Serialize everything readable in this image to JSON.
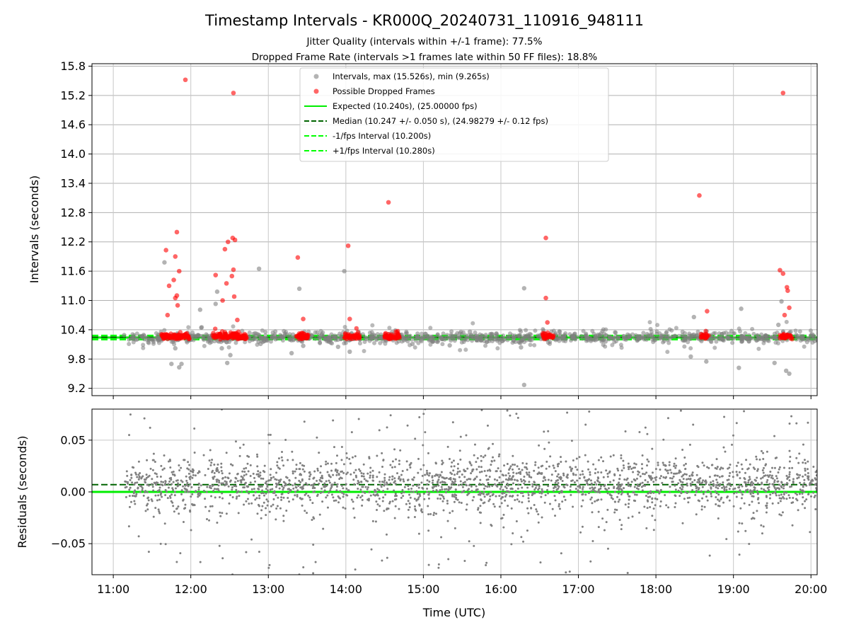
{
  "chart_data": [
    {
      "type": "scatter",
      "title": "Timestamp Intervals - KR000Q_20240731_110916_948111",
      "subtitle": [
        "Jitter Quality (intervals within +/-1 frame): 77.5%",
        "Dropped Frame Rate (intervals >1 frames late within 50 FF files): 18.8%"
      ],
      "ylabel": "Intervals (seconds)",
      "ylim": [
        9.05,
        15.85
      ],
      "yticks": [
        9.2,
        9.8,
        10.4,
        11.0,
        11.6,
        12.2,
        12.8,
        13.4,
        14.0,
        14.6,
        15.2,
        15.8
      ],
      "ytick_labels": [
        "9.2",
        "9.8",
        "10.4",
        "11.0",
        "11.6",
        "12.2",
        "12.8",
        "13.4",
        "14.0",
        "14.6",
        "15.2",
        "15.8"
      ],
      "grid": true,
      "legend_position": "top-center",
      "legend": [
        {
          "label": "Intervals, max (15.526s), min (9.265s)",
          "kind": "dot",
          "color": "#808080"
        },
        {
          "label": "Possible Dropped Frames",
          "kind": "dot",
          "color": "#ff0000"
        },
        {
          "label": "Expected (10.240s), (25.00000 fps)",
          "kind": "line",
          "color": "#00ee00",
          "dash": "solid"
        },
        {
          "label": "Median (10.247 +/- 0.050 s), (24.98279 +/- 0.12 fps)",
          "kind": "line",
          "color": "#006400",
          "dash": "dashed"
        },
        {
          "label": "-1/fps Interval (10.200s)",
          "kind": "line",
          "color": "#00ff00",
          "dash": "dashed"
        },
        {
          "label": "+1/fps Interval (10.280s)",
          "kind": "line",
          "color": "#00ff00",
          "dash": "dashed"
        }
      ],
      "reference_lines": {
        "expected": 10.24,
        "median": 10.247,
        "minus_1fps": 10.2,
        "plus_1fps": 10.28
      },
      "series": [
        {
          "name": "Intervals, max (15.526s), min (9.265s)",
          "color": "#808080",
          "dense_bands": {
            "note_free": true,
            "x_hours": [
              11.2,
              20.2
            ],
            "y_center": 10.24,
            "y_spread": 0.09
          },
          "points": [
            [
              11.66,
              11.78
            ],
            [
              11.8,
              10.02
            ],
            [
              11.75,
              9.7
            ],
            [
              11.85,
              9.63
            ],
            [
              11.88,
              9.7
            ],
            [
              12.32,
              10.93
            ],
            [
              12.34,
              11.18
            ],
            [
              12.4,
              10.02
            ],
            [
              12.51,
              9.88
            ],
            [
              12.47,
              9.72
            ],
            [
              12.12,
              10.81
            ],
            [
              12.14,
              10.45
            ],
            [
              12.88,
              11.65
            ],
            [
              12.9,
              10.11
            ],
            [
              13.4,
              11.24
            ],
            [
              13.3,
              9.92
            ],
            [
              13.45,
              10.07
            ],
            [
              13.98,
              11.6
            ],
            [
              13.9,
              10.05
            ],
            [
              14.05,
              9.95
            ],
            [
              16.3,
              11.25
            ],
            [
              16.3,
              9.27
            ],
            [
              16.26,
              10.04
            ],
            [
              18.49,
              10.66
            ],
            [
              18.45,
              9.85
            ],
            [
              18.65,
              9.75
            ],
            [
              19.1,
              10.83
            ],
            [
              19.07,
              9.62
            ],
            [
              19.53,
              9.72
            ],
            [
              19.62,
              10.98
            ],
            [
              19.72,
              9.5
            ],
            [
              19.68,
              9.56
            ],
            [
              19.58,
              10.5
            ],
            [
              15.6,
              10.36
            ],
            [
              17.9,
              10.28
            ],
            [
              11.14,
              10.29
            ],
            [
              20.05,
              10.17
            ],
            [
              14.86,
              10.11
            ],
            [
              15.34,
              10.08
            ],
            [
              17.35,
              10.16
            ]
          ]
        },
        {
          "name": "Possible Dropped Frames",
          "color": "#ff0000",
          "clusters": [
            {
              "x_from": 11.62,
              "x_to": 11.98,
              "y_max": 12.0
            },
            {
              "x_from": 12.28,
              "x_to": 12.72,
              "y_max": 11.9
            },
            {
              "x_from": 13.36,
              "x_to": 13.52,
              "y_max": 10.45
            },
            {
              "x_from": 13.98,
              "x_to": 14.18,
              "y_max": 10.55
            },
            {
              "x_from": 14.5,
              "x_to": 14.7,
              "y_max": 10.4
            },
            {
              "x_from": 16.54,
              "x_to": 16.68,
              "y_max": 10.4
            },
            {
              "x_from": 18.58,
              "x_to": 18.68,
              "y_max": 10.5
            },
            {
              "x_from": 19.6,
              "x_to": 19.76,
              "y_max": 10.7
            }
          ],
          "points": [
            [
              11.93,
              15.52
            ],
            [
              12.55,
              15.25
            ],
            [
              11.82,
              12.4
            ],
            [
              11.68,
              12.03
            ],
            [
              11.8,
              11.9
            ],
            [
              11.85,
              11.6
            ],
            [
              11.72,
              11.3
            ],
            [
              11.78,
              11.42
            ],
            [
              11.82,
              11.1
            ],
            [
              11.8,
              11.05
            ],
            [
              12.48,
              12.2
            ],
            [
              12.44,
              12.05
            ],
            [
              12.54,
              12.28
            ],
            [
              12.57,
              12.24
            ],
            [
              12.32,
              11.52
            ],
            [
              12.55,
              11.63
            ],
            [
              12.53,
              11.5
            ],
            [
              12.46,
              11.35
            ],
            [
              12.41,
              11.0
            ],
            [
              12.56,
              11.08
            ],
            [
              13.38,
              11.88
            ],
            [
              14.03,
              12.12
            ],
            [
              14.55,
              13.01
            ],
            [
              16.58,
              12.28
            ],
            [
              16.58,
              11.05
            ],
            [
              16.6,
              10.55
            ],
            [
              18.56,
              13.15
            ],
            [
              18.66,
              10.78
            ],
            [
              19.64,
              15.25
            ],
            [
              19.6,
              11.62
            ],
            [
              19.64,
              11.55
            ],
            [
              19.69,
              11.27
            ],
            [
              19.7,
              11.2
            ],
            [
              19.72,
              10.85
            ],
            [
              19.66,
              10.7
            ],
            [
              13.45,
              10.62
            ],
            [
              14.05,
              10.62
            ],
            [
              12.6,
              10.6
            ],
            [
              11.7,
              10.7
            ],
            [
              11.83,
              10.9
            ]
          ]
        }
      ]
    },
    {
      "type": "scatter",
      "ylabel": "Residuals (seconds)",
      "xlabel": "Time (UTC)",
      "xlim_hours": [
        10.725,
        20.08
      ],
      "ylim": [
        -0.08,
        0.08
      ],
      "yticks": [
        -0.05,
        0.0,
        0.05
      ],
      "ytick_labels": [
        "−0.05",
        "0.00",
        "0.05"
      ],
      "xticks_hours": [
        11,
        12,
        13,
        14,
        15,
        16,
        17,
        18,
        19,
        20
      ],
      "xtick_labels": [
        "11:00",
        "12:00",
        "13:00",
        "14:00",
        "15:00",
        "16:00",
        "17:00",
        "18:00",
        "19:00",
        "20:00"
      ],
      "grid": true,
      "reference_lines": {
        "expected": 0.0,
        "median": 0.007
      },
      "series": [
        {
          "color": "#808080",
          "distribution": {
            "x_hours": [
              11.15,
              20.08
            ],
            "center": 0.007,
            "spread": 0.019,
            "tail_fraction": 0.1
          }
        }
      ]
    }
  ]
}
